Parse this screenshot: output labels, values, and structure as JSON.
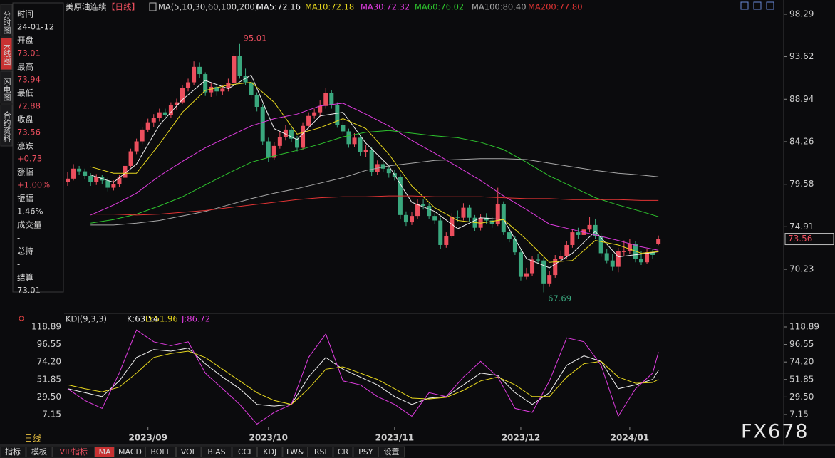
{
  "header": {
    "instrument": "美原油连续",
    "period": "【日线】"
  },
  "side_tabs": [
    "分时图",
    "K线图",
    "闪电图",
    "合约资料"
  ],
  "info": [
    {
      "label": "时间",
      "value": "24-01-12"
    },
    {
      "label": "开盘",
      "value": "73.01"
    },
    {
      "label": "最高",
      "value": "73.94"
    },
    {
      "label": "最低",
      "value": "72.88"
    },
    {
      "label": "收盘",
      "value": "73.56"
    },
    {
      "label": "涨跌",
      "value": "+0.73"
    },
    {
      "label": "涨幅",
      "value": "+1.00%"
    },
    {
      "label": "振幅",
      "value": "1.46%"
    },
    {
      "label": "成交量",
      "value": "-"
    },
    {
      "label": "总持",
      "value": "-"
    },
    {
      "label": "结算",
      "value": "73.01"
    }
  ],
  "chart_data": [
    {
      "type": "candlestick",
      "title": "MA(5,10,30,60,100,200)",
      "up_color": "#ec4f5e",
      "down_color": "#3aa87e",
      "ylim": [
        65.61,
        99.07
      ],
      "yticks": [
        98.29,
        93.62,
        88.94,
        84.26,
        79.58,
        74.91,
        70.23
      ],
      "xticks": [
        {
          "value": 14,
          "label": "2023/09"
        },
        {
          "value": 35,
          "label": "2023/10"
        },
        {
          "value": 57,
          "label": "2023/11"
        },
        {
          "value": 79,
          "label": "2023/12"
        },
        {
          "value": 98,
          "label": "2024/01"
        }
      ],
      "candles": [
        [
          79.8,
          80.9,
          79.4,
          80.2
        ],
        [
          80.2,
          81.8,
          80.0,
          81.3
        ],
        [
          81.3,
          81.6,
          80.6,
          81.0
        ],
        [
          81.0,
          81.3,
          80.1,
          80.5
        ],
        [
          80.5,
          80.8,
          79.4,
          79.8
        ],
        [
          79.8,
          80.7,
          79.5,
          80.4
        ],
        [
          80.4,
          80.6,
          79.6,
          80.0
        ],
        [
          80.0,
          80.3,
          78.8,
          79.2
        ],
        [
          79.2,
          80.0,
          78.9,
          79.6
        ],
        [
          79.6,
          80.6,
          79.3,
          80.3
        ],
        [
          80.3,
          81.9,
          80.1,
          81.6
        ],
        [
          81.6,
          83.5,
          81.4,
          83.2
        ],
        [
          83.2,
          84.6,
          82.9,
          84.3
        ],
        [
          84.3,
          85.9,
          84.0,
          85.6
        ],
        [
          85.6,
          86.8,
          85.3,
          86.4
        ],
        [
          86.4,
          87.3,
          85.9,
          86.9
        ],
        [
          86.9,
          87.9,
          86.5,
          87.5
        ],
        [
          87.5,
          87.9,
          86.8,
          87.2
        ],
        [
          87.2,
          88.6,
          86.9,
          88.3
        ],
        [
          88.3,
          89.0,
          87.8,
          88.6
        ],
        [
          88.6,
          90.5,
          88.4,
          90.2
        ],
        [
          90.2,
          91.2,
          89.8,
          90.8
        ],
        [
          90.8,
          93.1,
          90.5,
          92.5
        ],
        [
          92.5,
          93.0,
          91.3,
          91.7
        ],
        [
          91.7,
          91.9,
          89.3,
          89.7
        ],
        [
          89.7,
          90.8,
          89.2,
          90.3
        ],
        [
          90.3,
          90.6,
          89.3,
          89.8
        ],
        [
          89.8,
          90.5,
          89.4,
          90.1
        ],
        [
          90.1,
          91.2,
          89.8,
          90.7
        ],
        [
          90.7,
          94.0,
          90.5,
          93.7
        ],
        [
          93.7,
          95.01,
          91.2,
          91.5
        ],
        [
          91.5,
          92.3,
          90.5,
          90.8
        ],
        [
          90.8,
          91.1,
          89.0,
          89.4
        ],
        [
          89.4,
          89.7,
          87.6,
          88.1
        ],
        [
          88.1,
          88.4,
          83.9,
          84.3
        ],
        [
          84.3,
          84.7,
          82.0,
          82.5
        ],
        [
          82.5,
          84.2,
          82.3,
          83.8
        ],
        [
          83.8,
          85.3,
          83.5,
          84.8
        ],
        [
          84.8,
          86.1,
          84.4,
          85.6
        ],
        [
          85.6,
          85.9,
          84.2,
          84.6
        ],
        [
          84.6,
          84.9,
          83.2,
          83.6
        ],
        [
          83.6,
          86.4,
          83.4,
          86.0
        ],
        [
          86.0,
          87.5,
          85.7,
          87.1
        ],
        [
          87.1,
          87.9,
          86.8,
          87.5
        ],
        [
          87.5,
          88.8,
          87.0,
          88.2
        ],
        [
          88.2,
          90.2,
          87.9,
          89.6
        ],
        [
          89.6,
          89.9,
          87.9,
          88.3
        ],
        [
          88.3,
          88.6,
          85.8,
          86.1
        ],
        [
          86.1,
          86.5,
          85.0,
          85.4
        ],
        [
          85.4,
          85.7,
          83.6,
          84.0
        ],
        [
          84.0,
          85.2,
          83.7,
          84.7
        ],
        [
          84.7,
          85.0,
          82.7,
          83.1
        ],
        [
          83.1,
          83.9,
          82.6,
          83.4
        ],
        [
          83.4,
          83.7,
          80.5,
          80.9
        ],
        [
          80.9,
          82.2,
          80.6,
          81.8
        ],
        [
          81.8,
          82.1,
          80.9,
          81.3
        ],
        [
          81.3,
          81.6,
          80.3,
          80.8
        ],
        [
          80.8,
          81.2,
          80.0,
          80.4
        ],
        [
          80.4,
          80.7,
          75.8,
          76.2
        ],
        [
          76.2,
          76.6,
          75.0,
          75.4
        ],
        [
          75.4,
          76.5,
          75.1,
          76.1
        ],
        [
          76.1,
          77.9,
          75.8,
          77.4
        ],
        [
          77.4,
          78.0,
          76.8,
          77.2
        ],
        [
          77.2,
          77.5,
          75.8,
          76.1
        ],
        [
          76.1,
          76.4,
          75.2,
          75.6
        ],
        [
          75.6,
          75.9,
          72.5,
          72.9
        ],
        [
          72.9,
          74.3,
          72.6,
          73.9
        ],
        [
          73.9,
          76.4,
          73.7,
          76.0
        ],
        [
          76.0,
          76.7,
          75.5,
          75.9
        ],
        [
          75.9,
          77.5,
          75.6,
          77.0
        ],
        [
          77.0,
          77.3,
          75.5,
          75.9
        ],
        [
          75.9,
          76.2,
          74.4,
          74.8
        ],
        [
          74.8,
          76.3,
          74.5,
          75.9
        ],
        [
          75.9,
          76.4,
          75.2,
          75.6
        ],
        [
          75.6,
          76.0,
          74.8,
          75.2
        ],
        [
          75.2,
          79.2,
          75.0,
          77.4
        ],
        [
          77.4,
          77.7,
          74.0,
          74.3
        ],
        [
          74.3,
          74.8,
          73.2,
          73.6
        ],
        [
          73.6,
          73.9,
          71.8,
          72.1
        ],
        [
          72.1,
          72.4,
          69.0,
          69.4
        ],
        [
          69.4,
          70.4,
          69.1,
          69.8
        ],
        [
          69.8,
          71.7,
          69.5,
          71.3
        ],
        [
          71.3,
          71.9,
          70.8,
          71.2
        ],
        [
          71.2,
          71.5,
          67.69,
          68.6
        ],
        [
          68.6,
          70.0,
          68.3,
          69.6
        ],
        [
          69.6,
          71.8,
          69.3,
          71.4
        ],
        [
          71.4,
          72.3,
          71.0,
          71.7
        ],
        [
          71.7,
          73.3,
          71.4,
          72.9
        ],
        [
          72.9,
          74.7,
          72.6,
          74.3
        ],
        [
          74.3,
          74.8,
          73.6,
          74.0
        ],
        [
          74.0,
          75.0,
          73.7,
          74.6
        ],
        [
          74.6,
          76.0,
          74.3,
          75.1
        ],
        [
          75.1,
          75.8,
          73.6,
          73.9
        ],
        [
          73.9,
          74.2,
          71.6,
          72.0
        ],
        [
          72.0,
          72.5,
          70.9,
          71.2
        ],
        [
          71.2,
          71.9,
          70.1,
          70.5
        ],
        [
          70.5,
          72.6,
          69.9,
          72.2
        ],
        [
          72.2,
          73.4,
          71.7,
          72.2
        ],
        [
          72.2,
          73.6,
          71.9,
          73.0
        ],
        [
          73.0,
          73.3,
          71.0,
          71.4
        ],
        [
          71.4,
          72.2,
          70.7,
          71.0
        ],
        [
          71.0,
          72.5,
          70.8,
          72.1
        ],
        [
          72.1,
          72.4,
          71.4,
          71.8
        ],
        [
          73.01,
          73.94,
          72.88,
          73.56
        ]
      ],
      "x": [
        4,
        8,
        12,
        16,
        20,
        24,
        28,
        32,
        36,
        40,
        44,
        48,
        52,
        56,
        60,
        64,
        68,
        72,
        76,
        80,
        84,
        88,
        92,
        96,
        100,
        103
      ],
      "series": [
        {
          "name": "MA5:72.16",
          "color": "#f0f0f0",
          "values": [
            80.6,
            79.8,
            81.8,
            86.1,
            88.9,
            91.0,
            90.1,
            91.6,
            85.7,
            84.5,
            87.1,
            87.5,
            84.1,
            81.6,
            77.6,
            76.6,
            74.7,
            75.9,
            75.7,
            71.4,
            70.4,
            72.0,
            74.4,
            71.6,
            71.9,
            72.16
          ]
        },
        {
          "name": "MA10:72.18",
          "color": "#e8d81e",
          "values": [
            81.5,
            80.8,
            80.8,
            84.0,
            87.5,
            89.9,
            90.5,
            90.8,
            88.6,
            85.1,
            85.8,
            86.8,
            85.7,
            82.9,
            79.4,
            77.0,
            75.6,
            75.3,
            75.7,
            73.5,
            71.0,
            71.2,
            73.4,
            72.9,
            72.0,
            72.18
          ]
        },
        {
          "name": "MA30:72.32",
          "color": "#e03ce0",
          "values": [
            76.2,
            77.3,
            78.6,
            80.5,
            82.1,
            83.6,
            84.8,
            86.0,
            86.8,
            87.3,
            88.2,
            88.5,
            87.3,
            86.0,
            84.4,
            83.0,
            81.5,
            80.0,
            78.3,
            76.8,
            75.2,
            74.6,
            74.0,
            73.4,
            72.7,
            72.32
          ]
        },
        {
          "name": "MA60:76.02",
          "color": "#2ec42e",
          "values": [
            75.3,
            75.7,
            76.3,
            77.2,
            78.2,
            79.5,
            80.8,
            82.0,
            82.7,
            83.3,
            84.0,
            84.8,
            85.3,
            85.5,
            85.2,
            84.9,
            84.7,
            84.2,
            83.4,
            82.0,
            80.5,
            79.3,
            78.1,
            77.3,
            76.6,
            76.02
          ]
        },
        {
          "name": "MA100:80.40",
          "color": "#a8a8a8",
          "values": [
            75.1,
            75.1,
            75.3,
            75.6,
            76.1,
            76.6,
            77.3,
            78.0,
            78.6,
            79.1,
            79.7,
            80.3,
            81.1,
            81.6,
            81.9,
            82.2,
            82.3,
            82.4,
            82.4,
            82.3,
            81.9,
            81.5,
            81.1,
            80.8,
            80.6,
            80.4
          ]
        },
        {
          "name": "MA200:77.80",
          "color": "#e23434",
          "values": [
            76.3,
            76.3,
            76.2,
            76.3,
            76.5,
            76.7,
            77.0,
            77.3,
            77.6,
            77.9,
            78.1,
            78.2,
            78.2,
            78.3,
            78.3,
            78.2,
            78.2,
            78.2,
            78.1,
            78.0,
            78.0,
            77.9,
            77.9,
            77.9,
            77.8,
            77.8
          ]
        }
      ]
    },
    {
      "type": "line",
      "title": "KDJ(9,3,3)",
      "ylim": [
        -9.21,
        127.07
      ],
      "yticks": [
        118.89,
        96.55,
        {
          "value": 74.2,
          "label": "74.20"
        },
        51.85,
        {
          "value": 29.5,
          "label": "29.50"
        },
        7.15
      ],
      "x": [
        0,
        3,
        6,
        9,
        12,
        15,
        18,
        21,
        24,
        27,
        30,
        33,
        36,
        39,
        42,
        45,
        48,
        51,
        54,
        57,
        60,
        63,
        66,
        69,
        72,
        75,
        78,
        81,
        84,
        87,
        90,
        93,
        96,
        99,
        102,
        103
      ],
      "series": [
        {
          "name": "K:63.54",
          "color": "#f0f0f0",
          "values": [
            40,
            35,
            30,
            50,
            80,
            90,
            88,
            92,
            72,
            55,
            40,
            20,
            18,
            20,
            55,
            80,
            65,
            55,
            45,
            30,
            20,
            28,
            30,
            45,
            60,
            57,
            35,
            20,
            35,
            70,
            82,
            75,
            40,
            45,
            52,
            63.54
          ]
        },
        {
          "name": "D:51.96",
          "color": "#e8d81e",
          "values": [
            45,
            40,
            36,
            42,
            60,
            80,
            85,
            88,
            80,
            65,
            50,
            35,
            25,
            20,
            40,
            65,
            68,
            60,
            52,
            40,
            28,
            27,
            29,
            38,
            50,
            55,
            45,
            30,
            30,
            55,
            72,
            75,
            55,
            47,
            48,
            51.96
          ]
        },
        {
          "name": "J:86.72",
          "color": "#e03ce0",
          "values": [
            40,
            25,
            15,
            60,
            115,
            100,
            95,
            100,
            60,
            40,
            20,
            -5,
            10,
            20,
            80,
            110,
            50,
            45,
            30,
            20,
            5,
            35,
            30,
            55,
            75,
            55,
            15,
            10,
            50,
            105,
            100,
            70,
            5,
            40,
            60,
            86.72
          ]
        }
      ]
    }
  ],
  "footer": {
    "period": "日线",
    "toolbar": [
      "指标",
      "模板",
      "VIP指标",
      "MA",
      "MACD",
      "BOLL",
      "VOL",
      "BIAS",
      "CCI",
      "KDJ",
      "LW&",
      "RSI",
      "CR",
      "PSY",
      "设置"
    ],
    "watermark": "FX678"
  }
}
